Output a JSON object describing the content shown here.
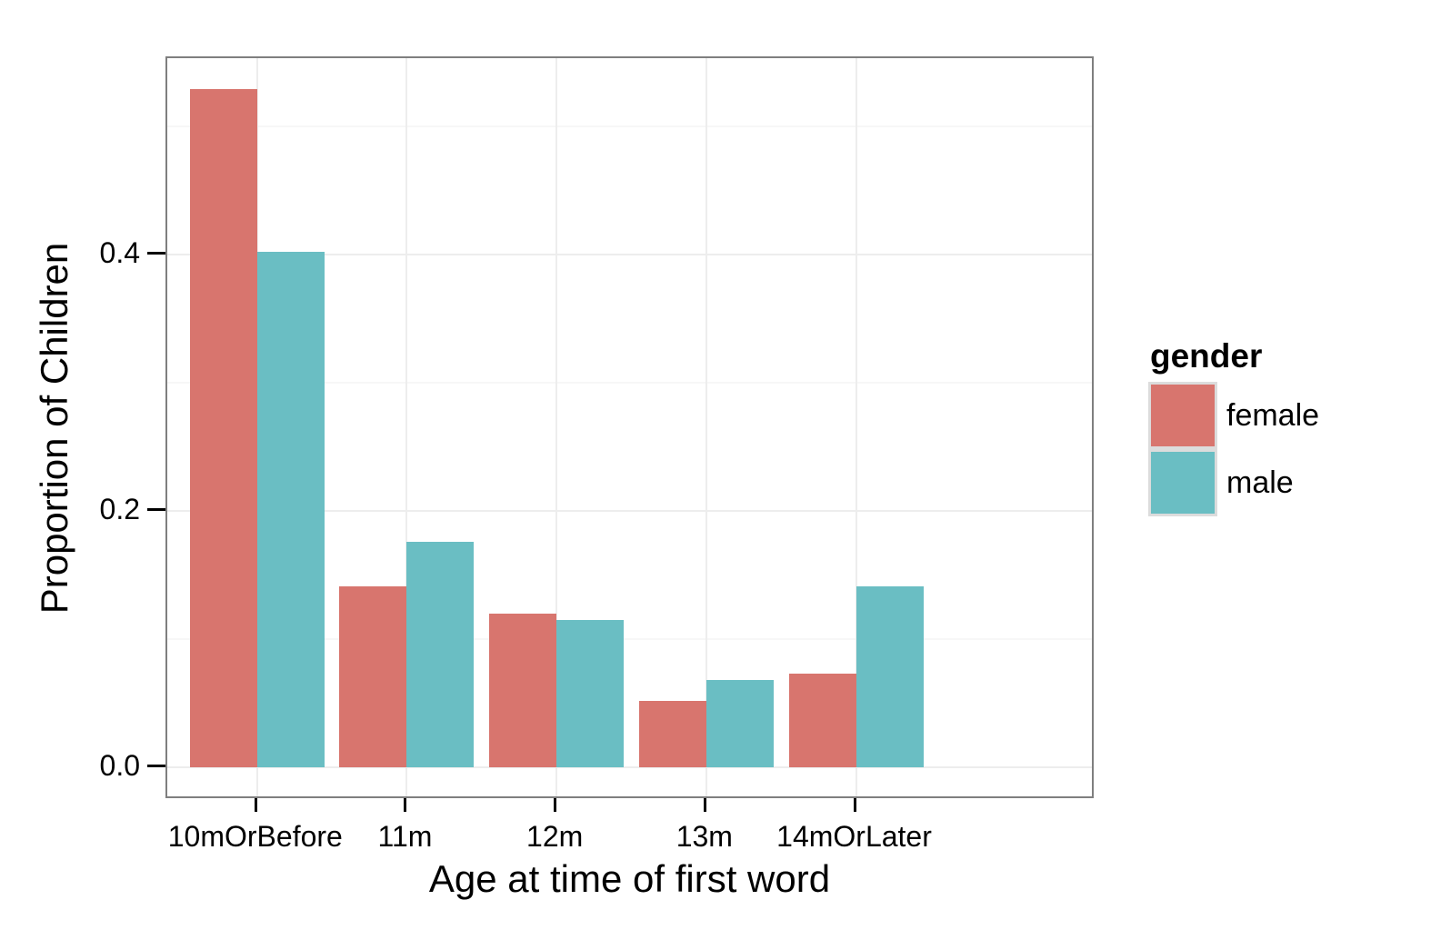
{
  "chart_data": {
    "type": "bar",
    "grouping": "dodged",
    "categories": [
      "10mOrBefore",
      "11m",
      "12m",
      "13m",
      "14mOrLater"
    ],
    "series": [
      {
        "name": "female",
        "color": "#D8756E",
        "values": [
          0.529,
          0.141,
          0.12,
          0.052,
          0.073
        ]
      },
      {
        "name": "male",
        "color": "#6ABEC3",
        "values": [
          0.402,
          0.176,
          0.115,
          0.068,
          0.141
        ]
      }
    ],
    "title": "",
    "xlabel": "Age at time of first word",
    "ylabel": "Proportion of Children",
    "y_tick_labels": [
      "0.0",
      "0.2",
      "0.4"
    ],
    "y_tick_values": [
      0.0,
      0.2,
      0.4
    ],
    "y_minor_values": [
      0.1,
      0.3,
      0.5
    ],
    "ylim": [
      0,
      0.553
    ],
    "grid": "major and minor horizontal, major vertical at category centers",
    "legend": {
      "title": "gender",
      "position": "right",
      "entries": [
        "female",
        "male"
      ]
    }
  },
  "colors": {
    "background": "#FFFFFF",
    "panel_border": "#7F7F7F",
    "grid_major": "#EDEDED",
    "grid_minor": "#F7F7F7",
    "tick_mark": "#000000",
    "text": "#000000",
    "legend_key_border": "#DCDCDC",
    "female": "#D8756E",
    "male": "#6ABEC3"
  }
}
